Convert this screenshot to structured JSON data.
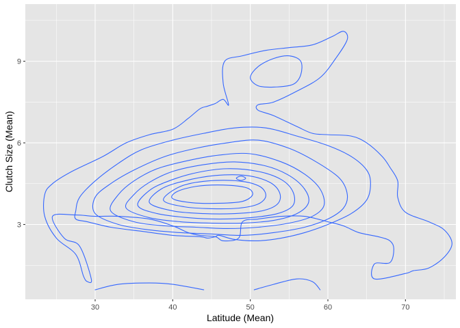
{
  "chart_data": {
    "type": "contour",
    "title": "",
    "xlabel": "Latitude (Mean)",
    "ylabel": "Clutch Size (Mean)",
    "xlim": [
      21,
      76.5
    ],
    "ylim": [
      0.25,
      11.1
    ],
    "x_ticks": [
      30,
      40,
      50,
      60,
      70
    ],
    "y_ticks": [
      3,
      6,
      9
    ],
    "grid": true,
    "background": "#e5e5e5",
    "grid_color": "#ffffff",
    "line_color": "#3366ff",
    "contours": [
      {
        "name": "outer-contour",
        "closed": true,
        "points": [
          [
            24.5,
            3.3
          ],
          [
            26,
            2.5
          ],
          [
            28,
            2.2
          ],
          [
            29.5,
            1.0
          ],
          [
            29,
            0.9
          ],
          [
            28.5,
            1.1
          ],
          [
            27.5,
            1.9
          ],
          [
            25,
            2.5
          ],
          [
            23.5,
            3.3
          ],
          [
            23.5,
            4.1
          ],
          [
            24.5,
            4.5
          ],
          [
            27,
            4.95
          ],
          [
            31,
            5.5
          ],
          [
            34,
            6.0
          ],
          [
            37,
            6.3
          ],
          [
            40,
            6.5
          ],
          [
            42,
            6.9
          ],
          [
            43.5,
            7.25
          ],
          [
            44.5,
            7.35
          ],
          [
            45.5,
            7.45
          ],
          [
            46.5,
            7.6
          ],
          [
            47.2,
            7.4
          ],
          [
            46.5,
            8.2
          ],
          [
            46.7,
            9.0
          ],
          [
            49,
            9.2
          ],
          [
            52,
            9.4
          ],
          [
            55,
            9.5
          ],
          [
            58,
            9.6
          ],
          [
            60.5,
            9.9
          ],
          [
            62,
            10.1
          ],
          [
            62.5,
            9.8
          ],
          [
            61,
            9.1
          ],
          [
            59,
            8.4
          ],
          [
            56,
            7.9
          ],
          [
            53,
            7.5
          ],
          [
            51,
            7.4
          ],
          [
            51,
            7.2
          ],
          [
            53,
            7.0
          ],
          [
            56,
            6.6
          ],
          [
            58,
            6.35
          ],
          [
            60,
            6.3
          ],
          [
            63,
            6.25
          ],
          [
            65,
            6.0
          ],
          [
            67,
            5.5
          ],
          [
            68,
            5.1
          ],
          [
            69,
            4.6
          ],
          [
            69,
            4.0
          ],
          [
            70,
            3.45
          ],
          [
            73,
            3.1
          ],
          [
            75,
            2.8
          ],
          [
            76,
            2.3
          ],
          [
            75,
            1.8
          ],
          [
            73,
            1.4
          ],
          [
            71,
            1.3
          ],
          [
            70,
            1.2
          ],
          [
            66,
            1.0
          ],
          [
            66,
            1.55
          ],
          [
            68,
            1.6
          ],
          [
            68.5,
            2.1
          ],
          [
            68,
            2.4
          ],
          [
            66.5,
            2.55
          ],
          [
            64,
            2.7
          ],
          [
            62,
            2.95
          ],
          [
            60,
            3.1
          ],
          [
            57,
            3.3
          ],
          [
            54,
            3.3
          ],
          [
            51,
            3.2
          ],
          [
            49,
            3.1
          ],
          [
            48.5,
            2.5
          ],
          [
            46.5,
            2.4
          ],
          [
            45.5,
            2.55
          ],
          [
            43.5,
            2.6
          ],
          [
            42,
            2.7
          ],
          [
            40,
            2.95
          ],
          [
            37,
            3.2
          ],
          [
            33,
            3.3
          ],
          [
            30,
            3.3
          ],
          [
            27.5,
            3.35
          ],
          [
            24.5,
            3.3
          ]
        ]
      },
      {
        "name": "contour-2",
        "closed": true,
        "points": [
          [
            27.5,
            3.2
          ],
          [
            29,
            3.1
          ],
          [
            32,
            2.9
          ],
          [
            36,
            2.75
          ],
          [
            40,
            2.6
          ],
          [
            43.5,
            2.55
          ],
          [
            44.5,
            2.5
          ],
          [
            45.5,
            2.55
          ],
          [
            46,
            2.6
          ],
          [
            48,
            2.45
          ],
          [
            51,
            2.4
          ],
          [
            54,
            2.5
          ],
          [
            57,
            2.7
          ],
          [
            60,
            3.0
          ],
          [
            63,
            3.4
          ],
          [
            65,
            3.9
          ],
          [
            65.5,
            4.5
          ],
          [
            65,
            5.0
          ],
          [
            63,
            5.5
          ],
          [
            60,
            5.9
          ],
          [
            56,
            6.25
          ],
          [
            52,
            6.55
          ],
          [
            48,
            6.55
          ],
          [
            44,
            6.35
          ],
          [
            40,
            6.1
          ],
          [
            36,
            5.75
          ],
          [
            33,
            5.25
          ],
          [
            30,
            4.6
          ],
          [
            28,
            4.0
          ],
          [
            27.5,
            3.5
          ],
          [
            27.5,
            3.2
          ]
        ]
      },
      {
        "name": "contour-3",
        "closed": true,
        "points": [
          [
            30,
            3.4
          ],
          [
            33,
            3.0
          ],
          [
            37,
            2.8
          ],
          [
            41,
            2.7
          ],
          [
            45,
            2.65
          ],
          [
            49,
            2.6
          ],
          [
            53,
            2.7
          ],
          [
            57,
            2.9
          ],
          [
            60,
            3.2
          ],
          [
            62,
            3.6
          ],
          [
            62.5,
            4.1
          ],
          [
            61.5,
            4.7
          ],
          [
            58.5,
            5.3
          ],
          [
            55,
            5.8
          ],
          [
            51,
            6.1
          ],
          [
            47,
            6.0
          ],
          [
            43,
            5.8
          ],
          [
            39,
            5.5
          ],
          [
            35,
            5.0
          ],
          [
            32,
            4.5
          ],
          [
            30,
            4.0
          ],
          [
            30,
            3.4
          ]
        ]
      },
      {
        "name": "contour-4",
        "closed": true,
        "points": [
          [
            32,
            3.5
          ],
          [
            35,
            3.1
          ],
          [
            39,
            2.95
          ],
          [
            43,
            2.9
          ],
          [
            47,
            2.85
          ],
          [
            51,
            2.9
          ],
          [
            55,
            3.05
          ],
          [
            58,
            3.3
          ],
          [
            59.5,
            3.7
          ],
          [
            59,
            4.3
          ],
          [
            57,
            4.85
          ],
          [
            54,
            5.3
          ],
          [
            50,
            5.6
          ],
          [
            46,
            5.55
          ],
          [
            42,
            5.35
          ],
          [
            38,
            5.05
          ],
          [
            35,
            4.6
          ],
          [
            33,
            4.1
          ],
          [
            32,
            3.5
          ]
        ]
      },
      {
        "name": "contour-5",
        "closed": true,
        "points": [
          [
            34,
            3.6
          ],
          [
            37,
            3.25
          ],
          [
            41,
            3.1
          ],
          [
            45,
            3.05
          ],
          [
            49,
            3.05
          ],
          [
            53,
            3.15
          ],
          [
            56,
            3.4
          ],
          [
            57.5,
            3.8
          ],
          [
            57,
            4.3
          ],
          [
            55,
            4.8
          ],
          [
            52,
            5.15
          ],
          [
            48,
            5.3
          ],
          [
            44,
            5.2
          ],
          [
            40,
            4.95
          ],
          [
            37,
            4.55
          ],
          [
            35,
            4.1
          ],
          [
            34,
            3.6
          ]
        ]
      },
      {
        "name": "contour-6",
        "closed": true,
        "points": [
          [
            35.5,
            3.7
          ],
          [
            38,
            3.4
          ],
          [
            42,
            3.25
          ],
          [
            46,
            3.2
          ],
          [
            50,
            3.25
          ],
          [
            53.5,
            3.4
          ],
          [
            55.5,
            3.7
          ],
          [
            55.5,
            4.2
          ],
          [
            54,
            4.65
          ],
          [
            51,
            4.95
          ],
          [
            47,
            5.05
          ],
          [
            43,
            4.9
          ],
          [
            39.5,
            4.6
          ],
          [
            37,
            4.25
          ],
          [
            35.5,
            3.7
          ]
        ]
      },
      {
        "name": "contour-7",
        "closed": true,
        "points": [
          [
            37,
            3.8
          ],
          [
            40,
            3.5
          ],
          [
            44,
            3.4
          ],
          [
            48,
            3.4
          ],
          [
            51.5,
            3.5
          ],
          [
            53.5,
            3.75
          ],
          [
            53.8,
            4.15
          ],
          [
            52.5,
            4.55
          ],
          [
            49.5,
            4.8
          ],
          [
            45.5,
            4.8
          ],
          [
            41.5,
            4.6
          ],
          [
            38.5,
            4.3
          ],
          [
            37,
            3.8
          ]
        ]
      },
      {
        "name": "contour-8",
        "closed": true,
        "points": [
          [
            38.8,
            3.9
          ],
          [
            41.5,
            3.65
          ],
          [
            45,
            3.58
          ],
          [
            48.5,
            3.6
          ],
          [
            51,
            3.75
          ],
          [
            52,
            4.05
          ],
          [
            51.2,
            4.4
          ],
          [
            48.5,
            4.6
          ],
          [
            44.5,
            4.6
          ],
          [
            41,
            4.4
          ],
          [
            38.8,
            3.9
          ]
        ]
      },
      {
        "name": "contour-9",
        "closed": true,
        "points": [
          [
            40,
            3.95
          ],
          [
            42.5,
            3.8
          ],
          [
            46,
            3.78
          ],
          [
            49,
            3.85
          ],
          [
            50.3,
            4.1
          ],
          [
            49.5,
            4.35
          ],
          [
            46.5,
            4.45
          ],
          [
            43,
            4.4
          ],
          [
            40.5,
            4.2
          ],
          [
            40,
            3.95
          ]
        ]
      },
      {
        "name": "peak-contour",
        "closed": true,
        "points": [
          [
            48.2,
            4.7
          ],
          [
            48.8,
            4.78
          ],
          [
            49.4,
            4.7
          ],
          [
            48.8,
            4.62
          ],
          [
            48.2,
            4.7
          ]
        ]
      },
      {
        "name": "upper-island",
        "closed": true,
        "points": [
          [
            50,
            8.4
          ],
          [
            51,
            8.8
          ],
          [
            53,
            9.1
          ],
          [
            55,
            9.2
          ],
          [
            56.5,
            9.0
          ],
          [
            56.5,
            8.5
          ],
          [
            55.5,
            8.15
          ],
          [
            53,
            8.05
          ],
          [
            51,
            8.1
          ],
          [
            50,
            8.4
          ]
        ]
      },
      {
        "name": "bottom-left-arc",
        "closed": false,
        "points": [
          [
            30,
            0.6
          ],
          [
            33,
            0.8
          ],
          [
            37,
            0.85
          ],
          [
            40,
            0.8
          ],
          [
            44,
            0.6
          ]
        ]
      },
      {
        "name": "bottom-mid-arc",
        "closed": false,
        "points": [
          [
            50.5,
            0.6
          ],
          [
            53,
            0.8
          ],
          [
            56,
            1.0
          ],
          [
            58,
            0.9
          ],
          [
            59,
            0.6
          ]
        ]
      }
    ]
  }
}
